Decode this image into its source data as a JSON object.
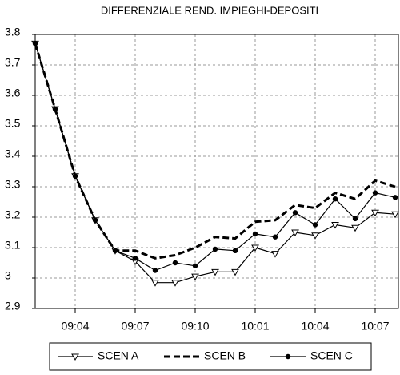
{
  "chart_data": {
    "type": "line",
    "title": "DIFFERENZIALE REND. IMPIEGHI-DEPOSITI",
    "categories": [
      null,
      null,
      "09:04",
      null,
      null,
      "09:07",
      null,
      null,
      "09:10",
      null,
      null,
      "10:01",
      null,
      null,
      "10:04",
      null,
      null,
      "10:07",
      null
    ],
    "series": [
      {
        "name": "SCEN A",
        "color": "#000000",
        "dash": false,
        "marker": "triangle-down",
        "values": [
          3.77,
          3.555,
          3.335,
          3.19,
          3.09,
          3.055,
          2.985,
          2.985,
          3.005,
          3.02,
          3.02,
          3.1,
          3.08,
          3.15,
          3.14,
          3.175,
          3.165,
          3.215,
          3.21
        ]
      },
      {
        "name": "SCEN B",
        "color": "#000000",
        "dash": true,
        "marker": "none",
        "values": [
          3.77,
          3.555,
          3.335,
          3.19,
          3.09,
          3.09,
          3.065,
          3.075,
          3.1,
          3.135,
          3.13,
          3.185,
          3.19,
          3.24,
          3.23,
          3.28,
          3.26,
          3.32,
          3.3
        ]
      },
      {
        "name": "SCEN C",
        "color": "#000000",
        "dash": false,
        "marker": "circle",
        "values": [
          3.77,
          3.555,
          3.335,
          3.19,
          3.09,
          3.065,
          3.025,
          3.05,
          3.04,
          3.095,
          3.09,
          3.145,
          3.135,
          3.215,
          3.175,
          3.26,
          3.195,
          3.28,
          3.265
        ]
      }
    ],
    "ylim": [
      2.9,
      3.8
    ],
    "yticks": [
      2.9,
      3.0,
      3.1,
      3.2,
      3.3,
      3.4,
      3.5,
      3.6,
      3.7,
      3.8
    ],
    "grid": true
  }
}
